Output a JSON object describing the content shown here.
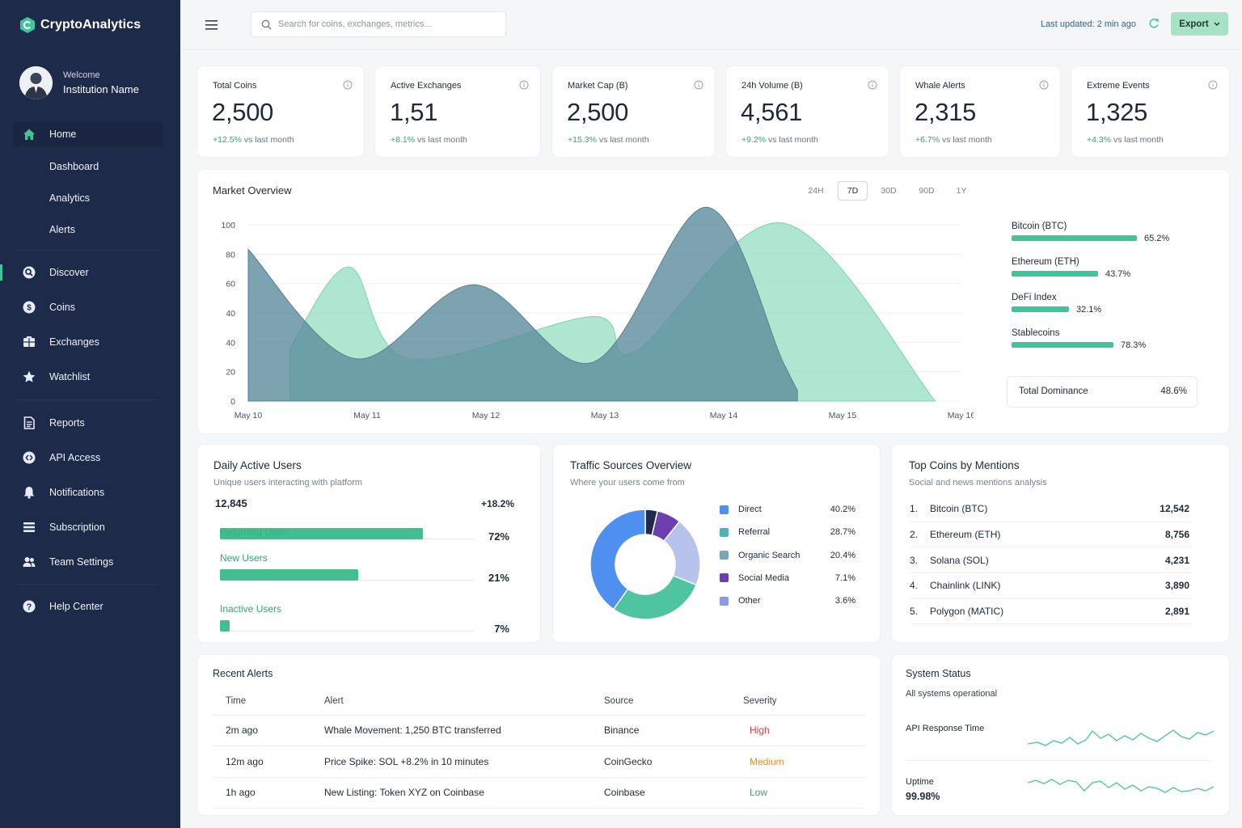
{
  "brand": {
    "name": "CryptoAnalytics"
  },
  "profile": {
    "welcome": "Welcome",
    "name": "Institution Name"
  },
  "nav": {
    "home": "Home",
    "dashboard": "Dashboard",
    "analytics": "Analytics",
    "alerts": "Alerts",
    "discover": "Discover",
    "coins": "Coins",
    "exchanges": "Exchanges",
    "watchlist": "Watchlist",
    "reports": "Reports",
    "api_access": "API Access",
    "notifications": "Notifications",
    "subscription": "Subscription",
    "team_settings": "Team Settings",
    "help_center": "Help Center"
  },
  "header": {
    "search_placeholder": "Search for coins, exchanges, metrics...",
    "last_updated": "Last updated: 2 min ago",
    "export_label": "Export"
  },
  "stats": [
    {
      "title": "Total Coins",
      "value": "2,500",
      "delta": "+12.5%",
      "suffix": "vs last month"
    },
    {
      "title": "Active Exchanges",
      "value": "1,51",
      "delta": "+8.1%",
      "suffix": "vs last month"
    },
    {
      "title": "Market Cap (B)",
      "value": "2,500",
      "delta": "+15.3%",
      "suffix": "vs last month"
    },
    {
      "title": "24h Volume (B)",
      "value": "4,561",
      "delta": "+9.2%",
      "suffix": "vs last month"
    },
    {
      "title": "Whale Alerts",
      "value": "2,315",
      "delta": "+6.7%",
      "suffix": "vs last month"
    },
    {
      "title": "Extreme Events",
      "value": "1,325",
      "delta": "+4.3%",
      "suffix": "vs last month"
    }
  ],
  "market_overview": {
    "title": "Market Overview",
    "ranges": [
      "24H",
      "7D",
      "30D",
      "90D",
      "1Y"
    ],
    "active_range": "7D",
    "dominance": [
      {
        "name": "Bitcoin (BTC)",
        "value": 65.2,
        "label": "65.2%"
      },
      {
        "name": "Ethereum (ETH)",
        "value": 43.7,
        "label": "43.7%"
      },
      {
        "name": "DeFi Index",
        "value": 32.1,
        "label": "32.1%"
      },
      {
        "name": "Stablecoins",
        "value": 78.3,
        "label": "78.3%"
      }
    ],
    "total_dominance_label": "Total Dominance",
    "total_dominance_value": "48.6%",
    "colors": {
      "series_a": "#5f8f9d",
      "series_b": "#8fdcbc"
    }
  },
  "chart_data": {
    "type": "area",
    "x": [
      "May 10",
      "May 11",
      "May 12",
      "May 13",
      "May 14",
      "May 15",
      "May 16"
    ],
    "ytick_labels": [
      "0",
      "20",
      "40",
      "40",
      "60",
      "80",
      "100"
    ],
    "ylim": [
      0,
      100
    ],
    "grid": true,
    "series": [
      {
        "points": [
          [
            0,
            86
          ],
          [
            0.9,
            24
          ],
          [
            1.9,
            66
          ],
          [
            2.9,
            22
          ],
          [
            3.85,
            110
          ],
          [
            4.5,
            22
          ],
          [
            4.62,
            6
          ]
        ]
      },
      {
        "points": [
          [
            0.35,
            30
          ],
          [
            0.85,
            76
          ],
          [
            1.35,
            24
          ],
          [
            2.9,
            48
          ],
          [
            3.25,
            28
          ],
          [
            4.5,
            101
          ],
          [
            5.78,
            0
          ]
        ]
      }
    ]
  },
  "daily_active": {
    "title": "Daily Active Users",
    "subtitle": "Unique users interacting with platform",
    "total": "12,845",
    "change": "+18.2%",
    "rows": [
      {
        "label": "Returning Users",
        "value": 72,
        "pct": "72%"
      },
      {
        "label": "New Users",
        "value": 21,
        "pct": "21%"
      },
      {
        "label": "Inactive Users",
        "value": 7,
        "pct": "7%"
      }
    ]
  },
  "traffic": {
    "title": "Traffic Sources Overview",
    "subtitle": "Where your users come from",
    "sources": [
      {
        "name": "Direct",
        "value": 40.2,
        "pct": "40.2%",
        "color": "#4f8ff0"
      },
      {
        "name": "Referral",
        "value": 28.7,
        "pct": "28.7%",
        "color": "#4ec5a0"
      },
      {
        "name": "Organic Search",
        "value": 20.4,
        "pct": "20.4%",
        "color": "#b7c3ea"
      },
      {
        "name": "Social Media",
        "value": 7.1,
        "pct": "7.1%",
        "color": "#6b3fb0"
      },
      {
        "name": "Other",
        "value": 3.6,
        "pct": "3.6%",
        "color": "#1f2a4d"
      }
    ]
  },
  "mentions": {
    "title": "Top Coins by Mentions",
    "subtitle": "Social and news mentions analysis",
    "rows": [
      {
        "rank": "1.",
        "name": "Bitcoin (BTC)",
        "count": "12,542"
      },
      {
        "rank": "2.",
        "name": "Ethereum (ETH)",
        "count": "8,756"
      },
      {
        "rank": "3.",
        "name": "Solana (SOL)",
        "count": "4,231"
      },
      {
        "rank": "4.",
        "name": "Chainlink (LINK)",
        "count": "3,890"
      },
      {
        "rank": "5.",
        "name": "Polygon (MATIC)",
        "count": "2,891"
      }
    ]
  },
  "recent_alerts": {
    "title": "Recent Alerts",
    "columns": [
      "Time",
      "Alert",
      "Source",
      "Severity"
    ],
    "rows": [
      {
        "time": "2m ago",
        "alert": "Whale Movement: 1,250 BTC transferred",
        "source": "Binance",
        "severity": "High",
        "color": "#e23b3b"
      },
      {
        "time": "12m ago",
        "alert": "Price Spike: SOL +8.2% in 10 minutes",
        "source": "CoinGecko",
        "severity": "Medium",
        "color": "#f08a24"
      },
      {
        "time": "1h ago",
        "alert": "New Listing: Token XYZ on Coinbase",
        "source": "Coinbase",
        "severity": "Low",
        "color": "#2fa772"
      }
    ]
  },
  "system_status": {
    "title": "System Status",
    "subtitle": "All systems operational",
    "api_label": "API Response Time",
    "uptime_label": "Uptime",
    "uptime_value": "99.98%"
  }
}
